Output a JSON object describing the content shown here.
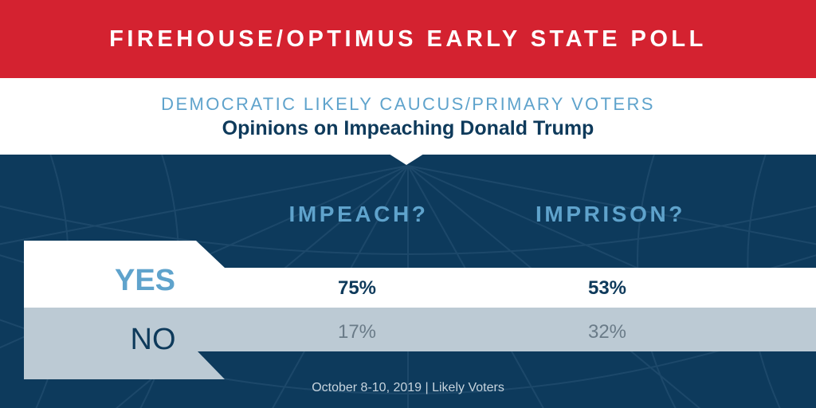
{
  "banner": {
    "title": "FIREHOUSE/OPTIMUS EARLY STATE POLL"
  },
  "subhead": {
    "kicker": "DEMOCRATIC LIKELY CAUCUS/PRIMARY VOTERS",
    "title": "Opinions on Impeaching Donald Trump"
  },
  "chart_data": {
    "type": "table",
    "columns": [
      "IMPEACH?",
      "IMPRISON?"
    ],
    "rows": [
      {
        "label": "YES",
        "values": [
          "75%",
          "53%"
        ]
      },
      {
        "label": "NO",
        "values": [
          "17%",
          "32%"
        ]
      }
    ],
    "values_numeric": {
      "IMPEACH?": {
        "YES": 75,
        "NO": 17
      },
      "IMPRISON?": {
        "YES": 53,
        "NO": 32
      }
    }
  },
  "footer": {
    "note": "October 8-10, 2019 | Likely Voters"
  },
  "colors": {
    "banner_red": "#d42230",
    "navy": "#0d3a5c",
    "accent_blue": "#5fa3cc",
    "no_row_gray": "#bccad4"
  }
}
